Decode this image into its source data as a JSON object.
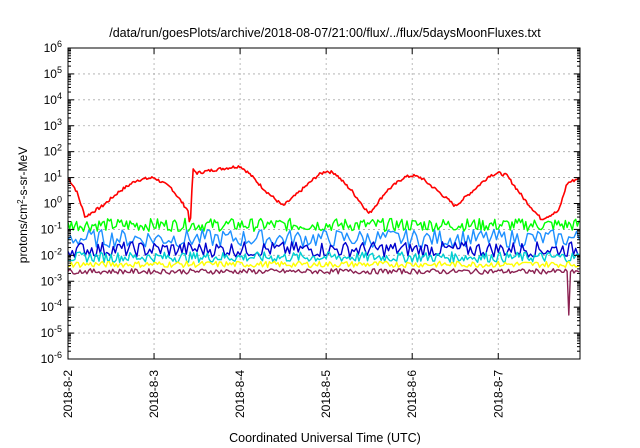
{
  "chart_data": {
    "type": "line",
    "title": "/data/run/goesPlots/archive/2018-08-07/21:00/flux/../flux/5daysMoonFluxes.txt",
    "xlabel": "Coordinated Universal Time (UTC)",
    "ylabel_parts": {
      "pre": "protons/cm",
      "sup": "2",
      "post": "-s-sr-MeV"
    },
    "yscale": "log",
    "ylim_exp": [
      -6,
      6
    ],
    "y_ticks": [
      {
        "base": "10",
        "exp": "-6"
      },
      {
        "base": "10",
        "exp": "-5"
      },
      {
        "base": "10",
        "exp": "-4"
      },
      {
        "base": "10",
        "exp": "-3"
      },
      {
        "base": "10",
        "exp": "-2"
      },
      {
        "base": "10",
        "exp": "-1"
      },
      {
        "base": "10",
        "exp": "0"
      },
      {
        "base": "10",
        "exp": "1"
      },
      {
        "base": "10",
        "exp": "2"
      },
      {
        "base": "10",
        "exp": "3"
      },
      {
        "base": "10",
        "exp": "4"
      },
      {
        "base": "10",
        "exp": "5"
      },
      {
        "base": "10",
        "exp": "6"
      }
    ],
    "xlim_days": [
      0,
      5.95
    ],
    "x_ticks": [
      "2018-8-2",
      "2018-8-3",
      "2018-8-4",
      "2018-8-5",
      "2018-8-6",
      "2018-8-7"
    ],
    "grid": true,
    "series": [
      {
        "color": "#ff0000",
        "x": [
          0,
          0.1,
          0.2,
          0.3,
          0.4,
          0.6,
          0.8,
          1.0,
          1.2,
          1.4,
          1.42,
          1.45,
          1.5,
          1.7,
          1.9,
          2.0,
          2.1,
          2.3,
          2.5,
          2.7,
          2.9,
          3.0,
          3.1,
          3.3,
          3.5,
          3.7,
          3.9,
          4.0,
          4.1,
          4.3,
          4.5,
          4.7,
          4.9,
          5.0,
          5.1,
          5.3,
          5.5,
          5.7,
          5.8,
          5.95
        ],
        "y": [
          10,
          3,
          0.3,
          0.5,
          0.8,
          3,
          8,
          10,
          4,
          0.5,
          0.1,
          20,
          15,
          20,
          25,
          28,
          15,
          3,
          0.8,
          3,
          12,
          18,
          15,
          3,
          0.4,
          3,
          10,
          12,
          10,
          3,
          0.8,
          3,
          12,
          15,
          12,
          1.5,
          0.25,
          0.5,
          6,
          10
        ]
      },
      {
        "color": "#00ff00",
        "x": [
          0,
          5.95
        ],
        "y": [
          0.15,
          0.15
        ],
        "noise": 0.25,
        "period": 0.02
      },
      {
        "color": "#1e90ff",
        "x": [
          0,
          5.95
        ],
        "y": [
          0.045,
          0.045
        ],
        "noise": 0.35,
        "period": 0.03
      },
      {
        "color": "#0000cd",
        "x": [
          0,
          5.95
        ],
        "y": [
          0.017,
          0.017
        ],
        "noise": 0.3,
        "period": 0.025
      },
      {
        "color": "#00ced1",
        "x": [
          0,
          5.95
        ],
        "y": [
          0.0085,
          0.0085
        ],
        "noise": 0.2,
        "period": 0.02
      },
      {
        "color": "#ffff00",
        "x": [
          0,
          5.95
        ],
        "y": [
          0.0045,
          0.0045
        ],
        "noise": 0.12,
        "period": 0.02
      },
      {
        "color": "#8b2252",
        "x": [
          0,
          5.95
        ],
        "y": [
          0.0024,
          0.0024
        ],
        "noise": 0.1,
        "period": 0.02,
        "dip": {
          "x": 5.82,
          "y": 5e-05
        }
      }
    ]
  }
}
